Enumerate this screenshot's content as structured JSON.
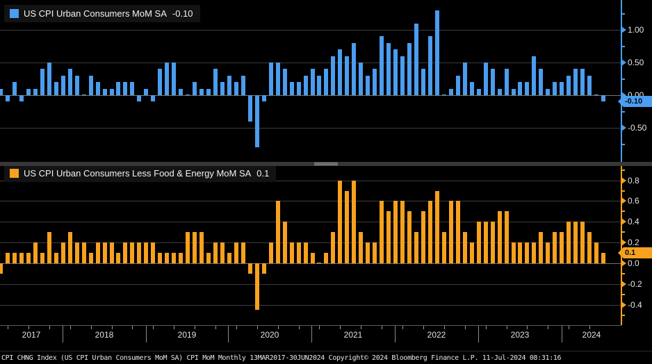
{
  "panels": {
    "top": {
      "legend_label": "US CPI Urban Consumers MoM SA",
      "legend_value": "-0.10",
      "badge": "-0.10",
      "color": "#4A9DEF",
      "axis_tick_labels": [
        "1.00",
        "0.50",
        "0.00",
        "-0.50"
      ]
    },
    "bottom": {
      "legend_label": "US CPI Urban Consumers Less Food & Energy MoM SA",
      "legend_value": "0.1",
      "badge": "0.1",
      "color": "#F7A11E",
      "axis_tick_labels": [
        "0.8",
        "0.6",
        "0.4",
        "0.2",
        "0.0",
        "-0.2",
        "-0.4"
      ]
    }
  },
  "x_axis": {
    "years": [
      "2017",
      "2018",
      "2019",
      "2020",
      "2021",
      "2022",
      "2023",
      "2024"
    ]
  },
  "status_bar": {
    "text": "CPI CHNG Index (US CPI Urban Consumers MoM SA) CPI MoM  Monthly 13MAR2017-30JUN2024 Copyright© 2024 Bloomberg Finance L.P. 11-Jul-2024 08:31:16"
  },
  "chart_data": [
    {
      "type": "bar",
      "title": "US CPI Urban Consumers MoM SA",
      "series_name": "US CPI Urban Consumers MoM SA",
      "last_value": -0.1,
      "frequency": "monthly",
      "range": "13MAR2017-30JUN2024",
      "bar_color": "#4A9DEF",
      "grid": true,
      "legend_position": "top-left",
      "ylim": [
        -0.97,
        1.37
      ],
      "yticks": [
        1.0,
        0.5,
        0.0,
        -0.5
      ],
      "minor_yticks": [
        1.25,
        0.75,
        0.25,
        -0.25,
        -0.75
      ],
      "categories": [
        "2017-03",
        "2017-04",
        "2017-05",
        "2017-06",
        "2017-07",
        "2017-08",
        "2017-09",
        "2017-10",
        "2017-11",
        "2017-12",
        "2018-01",
        "2018-02",
        "2018-03",
        "2018-04",
        "2018-05",
        "2018-06",
        "2018-07",
        "2018-08",
        "2018-09",
        "2018-10",
        "2018-11",
        "2018-12",
        "2019-01",
        "2019-02",
        "2019-03",
        "2019-04",
        "2019-05",
        "2019-06",
        "2019-07",
        "2019-08",
        "2019-09",
        "2019-10",
        "2019-11",
        "2019-12",
        "2020-01",
        "2020-02",
        "2020-03",
        "2020-04",
        "2020-05",
        "2020-06",
        "2020-07",
        "2020-08",
        "2020-09",
        "2020-10",
        "2020-11",
        "2020-12",
        "2021-01",
        "2021-02",
        "2021-03",
        "2021-04",
        "2021-05",
        "2021-06",
        "2021-07",
        "2021-08",
        "2021-09",
        "2021-10",
        "2021-11",
        "2021-12",
        "2022-01",
        "2022-02",
        "2022-03",
        "2022-04",
        "2022-05",
        "2022-06",
        "2022-07",
        "2022-08",
        "2022-09",
        "2022-10",
        "2022-11",
        "2022-12",
        "2023-01",
        "2023-02",
        "2023-03",
        "2023-04",
        "2023-05",
        "2023-06",
        "2023-07",
        "2023-08",
        "2023-09",
        "2023-10",
        "2023-11",
        "2023-12",
        "2024-01",
        "2024-02",
        "2024-03",
        "2024-04",
        "2024-05",
        "2024-06"
      ],
      "values": [
        0.1,
        -0.1,
        0.2,
        -0.1,
        0.1,
        0.1,
        0.4,
        0.5,
        0.2,
        0.3,
        0.4,
        0.3,
        0.0,
        0.3,
        0.2,
        0.1,
        0.1,
        0.2,
        0.2,
        0.2,
        -0.1,
        0.1,
        -0.1,
        0.4,
        0.5,
        0.5,
        0.1,
        0.0,
        0.2,
        0.1,
        0.1,
        0.4,
        0.2,
        0.3,
        0.2,
        0.3,
        -0.4,
        -0.8,
        -0.1,
        0.5,
        0.5,
        0.4,
        0.2,
        0.2,
        0.3,
        0.4,
        0.3,
        0.4,
        0.6,
        0.7,
        0.6,
        0.8,
        0.5,
        0.3,
        0.4,
        0.9,
        0.8,
        0.7,
        0.6,
        0.8,
        1.1,
        0.4,
        0.9,
        1.3,
        0.0,
        0.1,
        0.3,
        0.5,
        0.2,
        0.1,
        0.5,
        0.4,
        0.1,
        0.4,
        0.1,
        0.2,
        0.2,
        0.6,
        0.4,
        0.1,
        0.2,
        0.2,
        0.3,
        0.4,
        0.4,
        0.3,
        0.0,
        -0.1
      ]
    },
    {
      "type": "bar",
      "title": "US CPI Urban Consumers Less Food & Energy MoM SA",
      "series_name": "US CPI Urban Consumers Less Food & Energy MoM SA",
      "last_value": 0.1,
      "frequency": "monthly",
      "range": "13MAR2017-30JUN2024",
      "bar_color": "#F7A11E",
      "grid": true,
      "legend_position": "top-left",
      "ylim": [
        -0.59,
        0.95
      ],
      "yticks": [
        0.8,
        0.6,
        0.4,
        0.2,
        0.0,
        -0.2,
        -0.4
      ],
      "minor_yticks": [
        0.9,
        0.7,
        0.5,
        0.3,
        0.1,
        -0.1,
        -0.3,
        -0.5
      ],
      "categories": [
        "2017-03",
        "2017-04",
        "2017-05",
        "2017-06",
        "2017-07",
        "2017-08",
        "2017-09",
        "2017-10",
        "2017-11",
        "2017-12",
        "2018-01",
        "2018-02",
        "2018-03",
        "2018-04",
        "2018-05",
        "2018-06",
        "2018-07",
        "2018-08",
        "2018-09",
        "2018-10",
        "2018-11",
        "2018-12",
        "2019-01",
        "2019-02",
        "2019-03",
        "2019-04",
        "2019-05",
        "2019-06",
        "2019-07",
        "2019-08",
        "2019-09",
        "2019-10",
        "2019-11",
        "2019-12",
        "2020-01",
        "2020-02",
        "2020-03",
        "2020-04",
        "2020-05",
        "2020-06",
        "2020-07",
        "2020-08",
        "2020-09",
        "2020-10",
        "2020-11",
        "2020-12",
        "2021-01",
        "2021-02",
        "2021-03",
        "2021-04",
        "2021-05",
        "2021-06",
        "2021-07",
        "2021-08",
        "2021-09",
        "2021-10",
        "2021-11",
        "2021-12",
        "2022-01",
        "2022-02",
        "2022-03",
        "2022-04",
        "2022-05",
        "2022-06",
        "2022-07",
        "2022-08",
        "2022-09",
        "2022-10",
        "2022-11",
        "2022-12",
        "2023-01",
        "2023-02",
        "2023-03",
        "2023-04",
        "2023-05",
        "2023-06",
        "2023-07",
        "2023-08",
        "2023-09",
        "2023-10",
        "2023-11",
        "2023-12",
        "2024-01",
        "2024-02",
        "2024-03",
        "2024-04",
        "2024-05",
        "2024-06"
      ],
      "values": [
        -0.1,
        0.1,
        0.1,
        0.1,
        0.1,
        0.2,
        0.1,
        0.3,
        0.1,
        0.2,
        0.3,
        0.2,
        0.2,
        0.1,
        0.2,
        0.2,
        0.2,
        0.1,
        0.2,
        0.2,
        0.2,
        0.2,
        0.2,
        0.1,
        0.1,
        0.1,
        0.1,
        0.3,
        0.3,
        0.3,
        0.1,
        0.2,
        0.2,
        0.1,
        0.2,
        0.2,
        -0.1,
        -0.45,
        -0.1,
        0.2,
        0.6,
        0.4,
        0.2,
        0.2,
        0.2,
        0.1,
        0.0,
        0.1,
        0.3,
        0.8,
        0.7,
        0.8,
        0.3,
        0.2,
        0.2,
        0.6,
        0.5,
        0.6,
        0.6,
        0.5,
        0.3,
        0.5,
        0.6,
        0.7,
        0.3,
        0.6,
        0.6,
        0.3,
        0.2,
        0.4,
        0.4,
        0.4,
        0.5,
        0.5,
        0.2,
        0.2,
        0.2,
        0.2,
        0.3,
        0.2,
        0.3,
        0.3,
        0.4,
        0.4,
        0.4,
        0.3,
        0.2,
        0.1
      ]
    }
  ]
}
